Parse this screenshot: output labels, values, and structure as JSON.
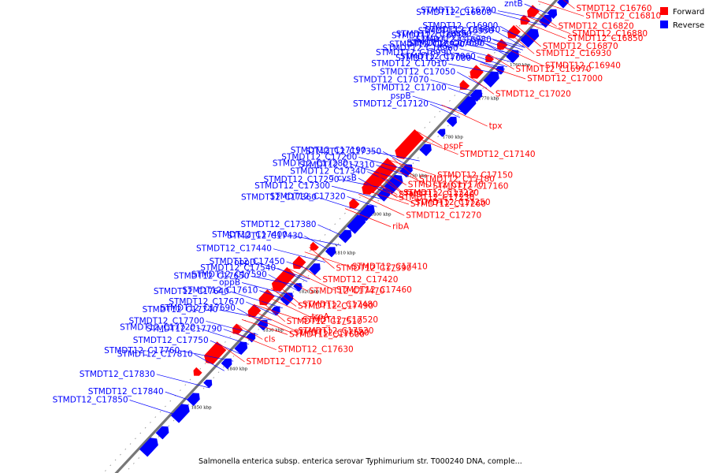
{
  "caption": "Salmonella enterica subsp. enterica serovar Typhimurium str. T000240 DNA, comple...",
  "legend": [
    {
      "label": "Forward",
      "color": "#ff0000"
    },
    {
      "label": "Reverse",
      "color": "#0000ff"
    }
  ],
  "colors": {
    "forward": "#ff0000",
    "reverse": "#0000ff",
    "backbone": "#777777"
  },
  "chart_data": {
    "type": "genome-map",
    "ticks": [
      {
        "label": "1760 kbp",
        "t": 0.12
      },
      {
        "label": "1770 kbp",
        "t": 0.19
      },
      {
        "label": "1780 kbp",
        "t": 0.27
      },
      {
        "label": "1790 kbp",
        "t": 0.35
      },
      {
        "label": "1800 kbp",
        "t": 0.43
      },
      {
        "label": "1810 kbp",
        "t": 0.51
      },
      {
        "label": "1820 kbp",
        "t": 0.59
      },
      {
        "label": "1830 kbp",
        "t": 0.67
      },
      {
        "label": "1840 kbp",
        "t": 0.75
      },
      {
        "label": "1850 kbp",
        "t": 0.83
      }
    ],
    "reverse_labels": [
      {
        "name": "STMDT12_C16950",
        "t": 0.095
      },
      {
        "name": "STMDT12_C16890",
        "t": 0.095
      },
      {
        "name": "STMDT12_C16980",
        "t": 0.1
      },
      {
        "name": "STMDT12_C16910",
        "t": 0.105
      },
      {
        "name": "STMDT12_C17090",
        "t": 0.115
      },
      {
        "name": "STMDT12_C16920",
        "t": 0.11
      },
      {
        "name": "STMDT12_C17030",
        "t": 0.12
      },
      {
        "name": "STMDT12_C16960",
        "t": 0.125
      },
      {
        "name": "STMDT12_C17060",
        "t": 0.135
      },
      {
        "name": "STMDT12_C16990",
        "t": 0.14
      },
      {
        "name": "STMDT12_C17080",
        "t": 0.145
      },
      {
        "name": "STMDT12_C17010",
        "t": 0.15
      },
      {
        "name": "STMDT12_C17050",
        "t": 0.18
      },
      {
        "name": "STMDT12_C17070",
        "t": 0.19
      },
      {
        "name": "STMDT12_C17100",
        "t": 0.2
      },
      {
        "name": "pspB",
        "t": 0.23
      },
      {
        "name": "STMDT12_C17120",
        "t": 0.24
      },
      {
        "name": "STMDT12_C17190",
        "t": 0.33
      },
      {
        "name": "STMDT12_C17350",
        "t": 0.345
      },
      {
        "name": "STMDT12_C17200",
        "t": 0.35
      },
      {
        "name": "STMDT12_C17310",
        "t": 0.36
      },
      {
        "name": "STMDT12_C17280",
        "t": 0.37
      },
      {
        "name": "STMDT12_C17340",
        "t": 0.38
      },
      {
        "name": "STMDT12_C17290",
        "t": 0.39
      },
      {
        "name": "cysB",
        "t": 0.4
      },
      {
        "name": "STMDT12_C17300",
        "t": 0.41
      },
      {
        "name": "STMDT12_C17320",
        "t": 0.425
      },
      {
        "name": "STMDT12_C17360",
        "t": 0.44
      },
      {
        "name": "STMDT12_C17380",
        "t": 0.49
      },
      {
        "name": "STMDT12_C17400",
        "t": 0.505
      },
      {
        "name": "STMDT12_C17430",
        "t": 0.52
      },
      {
        "name": "STMDT12_C17440",
        "t": 0.54
      },
      {
        "name": "STMDT12_C17450",
        "t": 0.56
      },
      {
        "name": "oppD",
        "t": 0.575
      },
      {
        "name": "STMDT12_C17540",
        "t": 0.58
      },
      {
        "name": "STMDT12_C17650",
        "t": 0.59
      },
      {
        "name": "STMDT12_C17590",
        "t": 0.6
      },
      {
        "name": "oppB",
        "t": 0.61
      },
      {
        "name": "STMDT12_C17610",
        "t": 0.62
      },
      {
        "name": "STMDT12_C17640",
        "t": 0.635
      },
      {
        "name": "STMDT12_C17670",
        "t": 0.65
      },
      {
        "name": "STMDT12_C17740",
        "t": 0.66
      },
      {
        "name": "STMDT12_C17690",
        "t": 0.67
      },
      {
        "name": "STMDT12_C17700",
        "t": 0.69
      },
      {
        "name": "STMDT12_C17790",
        "t": 0.7
      },
      {
        "name": "STMDT12_C17720",
        "t": 0.71
      },
      {
        "name": "STMDT12_C17750",
        "t": 0.73
      },
      {
        "name": "STMDT12_C17760",
        "t": 0.745
      },
      {
        "name": "STMDT12_C17810",
        "t": 0.765
      },
      {
        "name": "STMDT12_C17830",
        "t": 0.8
      },
      {
        "name": "STMDT12_C17840",
        "t": 0.83
      },
      {
        "name": "STMDT12_C17850",
        "t": 0.86
      },
      {
        "name": "zntB",
        "t": 0.03
      },
      {
        "name": "STMDT12_C16790",
        "t": 0.04
      },
      {
        "name": "STMDT12_C16900",
        "t": 0.085
      },
      {
        "name": "STMDT12_C16800",
        "t": 0.05
      },
      {
        "name": "STMDT12_C16840",
        "t": 0.08
      }
    ],
    "forward_labels": [
      {
        "name": "STMDT12_C16760",
        "t": 0.005
      },
      {
        "name": "STMDT12_C16880",
        "t": 0.06
      },
      {
        "name": "STMDT12_C16930",
        "t": 0.095
      },
      {
        "name": "STMDT12_C16810",
        "t": 0.03
      },
      {
        "name": "STMDT12_C16820",
        "t": 0.045
      },
      {
        "name": "STMDT12_C16940",
        "t": 0.12
      },
      {
        "name": "STMDT12_C16970",
        "t": 0.14
      },
      {
        "name": "STMDT12_C16850",
        "t": 0.07
      },
      {
        "name": "STMDT12_C16870",
        "t": 0.08
      },
      {
        "name": "STMDT12_C17000",
        "t": 0.16
      },
      {
        "name": "STMDT12_C17020",
        "t": 0.185
      },
      {
        "name": "tpx",
        "t": 0.245
      },
      {
        "name": "pspF",
        "t": 0.3
      },
      {
        "name": "STMDT12_C17140",
        "t": 0.31
      },
      {
        "name": "STMDT12_C17180",
        "t": 0.355
      },
      {
        "name": "STMDT12_C17150",
        "t": 0.36
      },
      {
        "name": "STMDT12_C17230",
        "t": 0.4
      },
      {
        "name": "STMDT12_C17160",
        "t": 0.37
      },
      {
        "name": "STMDT12_C17170",
        "t": 0.38
      },
      {
        "name": "STMDT12_C17250",
        "t": 0.41
      },
      {
        "name": "fabI",
        "t": 0.385
      },
      {
        "name": "STMDT12_C17260",
        "t": 0.42
      },
      {
        "name": "STMDT12_C17220",
        "t": 0.39
      },
      {
        "name": "STMDT12_C17270",
        "t": 0.43
      },
      {
        "name": "STMDT12_C17240",
        "t": 0.4
      },
      {
        "name": "ribA",
        "t": 0.46
      },
      {
        "name": "STMDT12_C17390",
        "t": 0.54
      },
      {
        "name": "STMDT12_C17410",
        "t": 0.55
      },
      {
        "name": "STMDT12_C17420",
        "t": 0.57
      },
      {
        "name": "STMDT12_C17460",
        "t": 0.585
      },
      {
        "name": "STMDT12_C17470",
        "t": 0.6
      },
      {
        "name": "STMDT12_C17580",
        "t": 0.68
      },
      {
        "name": "STMDT12_C17480",
        "t": 0.615
      },
      {
        "name": "STMDT12_C17600",
        "t": 0.69
      },
      {
        "name": "STMDT12_C17490",
        "t": 0.625
      },
      {
        "name": "trpA",
        "t": 0.64
      },
      {
        "name": "cls",
        "t": 0.7
      },
      {
        "name": "STMDT12_C17630",
        "t": 0.715
      },
      {
        "name": "STMDT12_C17510",
        "t": 0.65
      },
      {
        "name": "STMDT12_C17520",
        "t": 0.66
      },
      {
        "name": "STMDT12_C17710",
        "t": 0.74
      },
      {
        "name": "STMDT12_C17530",
        "t": 0.67
      }
    ]
  }
}
